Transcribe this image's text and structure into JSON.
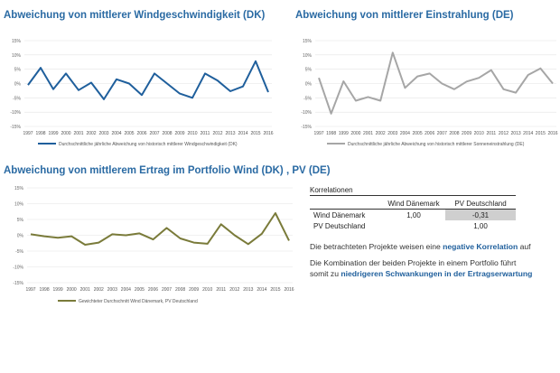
{
  "chart_data": [
    {
      "id": "dk",
      "type": "line",
      "title": "Abweichung von mittlerer Windgeschwindigkeit (DK)",
      "x": [
        1997,
        1998,
        1999,
        2000,
        2001,
        2002,
        2003,
        2004,
        2005,
        2006,
        2007,
        2008,
        2009,
        2010,
        2011,
        2012,
        2013,
        2014,
        2015,
        2016
      ],
      "series": [
        {
          "name": "Durchschnittliche jährliche Abweichung von historisch mittlerer Windgeschwindigkeit (DK)",
          "color": "#1f5f9c",
          "values": [
            -0.5,
            5.5,
            -2,
            3.5,
            -2.3,
            0.3,
            -5.5,
            1.5,
            0,
            -4,
            3.5,
            0,
            -3.5,
            -5,
            3.5,
            1,
            -2.7,
            -1,
            7.8,
            -3
          ]
        }
      ],
      "ylim": [
        -15,
        15
      ],
      "yticks": [
        "-15%",
        "-10%",
        "-5%",
        "0%",
        "5%",
        "10%",
        "15%"
      ],
      "grid": true,
      "legend": "bottom"
    },
    {
      "id": "de",
      "type": "line",
      "title": "Abweichung von mittlerer Einstrahlung (DE)",
      "x": [
        1997,
        1998,
        1999,
        2000,
        2001,
        2002,
        2003,
        2004,
        2005,
        2006,
        2007,
        2008,
        2009,
        2010,
        2011,
        2012,
        2013,
        2014,
        2015,
        2016
      ],
      "series": [
        {
          "name": "Durchschnittliche jährliche Abweichung von historisch mittlerer Sonneneinstrahlung (DE)",
          "color": "#a6a6a6",
          "values": [
            2,
            -10.5,
            0.8,
            -6,
            -4.7,
            -6,
            10.8,
            -1.5,
            2.5,
            3.5,
            0,
            -2,
            0.7,
            2,
            4.7,
            -2,
            -3.2,
            3,
            5.3,
            0
          ]
        }
      ],
      "ylim": [
        -15,
        15
      ],
      "yticks": [
        "-15%",
        "-10%",
        "-5%",
        "0%",
        "5%",
        "10%",
        "15%"
      ],
      "grid": true,
      "legend": "bottom"
    },
    {
      "id": "pf",
      "type": "line",
      "title": "Abweichung von mittlerem Ertrag im Portfolio Wind (DK) , PV (DE)",
      "x": [
        1997,
        1998,
        1999,
        2000,
        2001,
        2002,
        2003,
        2004,
        2005,
        2006,
        2007,
        2008,
        2009,
        2010,
        2011,
        2012,
        2013,
        2014,
        2015,
        2016
      ],
      "series": [
        {
          "name": "Gewichteter Durchschnitt Wind Dänemark, PV Deutschland",
          "color": "#7a7b3a",
          "values": [
            0.3,
            -0.3,
            -0.8,
            -0.3,
            -3,
            -2.3,
            0.3,
            0,
            0.6,
            -1.3,
            2.3,
            -1,
            -2.3,
            -2.7,
            3.5,
            0,
            -2.8,
            0.5,
            7,
            -1.7
          ]
        }
      ],
      "ylim": [
        -15,
        15
      ],
      "yticks": [
        "-15%",
        "-10%",
        "-5%",
        "0%",
        "5%",
        "10%",
        "15%"
      ],
      "grid": true,
      "legend": "bottom"
    }
  ],
  "correlations": {
    "heading": "Korrelationen",
    "columns": [
      "",
      "Wind Dänemark",
      "PV Deutschland"
    ],
    "rows": [
      {
        "label": "Wind Dänemark",
        "values": [
          "1,00",
          "-0,31"
        ]
      },
      {
        "label": "PV Deutschland",
        "values": [
          "",
          "1,00"
        ]
      }
    ]
  },
  "notes": {
    "line1_pre": "Die betrachteten Projekte weisen eine",
    "line1_bold": "negative Korrelation",
    "line1_post": "auf",
    "line2": "Die Kombination der beiden Projekte in einem Portfolio führt",
    "line3_pre": "somit zu",
    "line3_bold": "niedrigeren Schwankungen in der Ertragserwartung"
  }
}
